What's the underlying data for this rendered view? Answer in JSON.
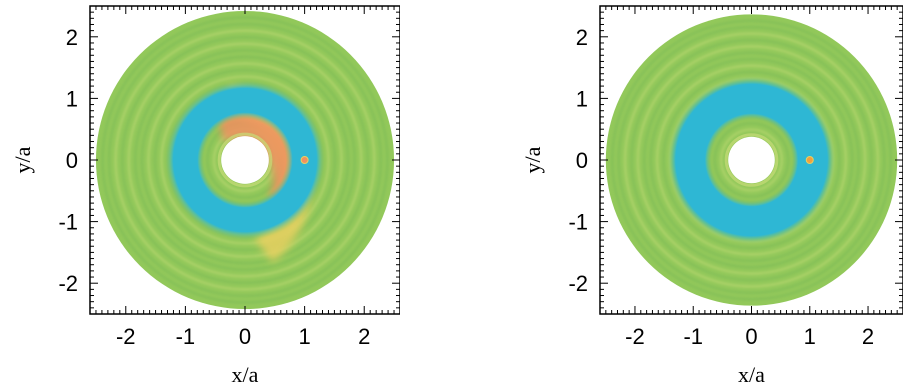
{
  "chart_data": [
    {
      "type": "heatmap",
      "panel": "left",
      "title": "",
      "xlabel": "x/a",
      "ylabel": "y/a",
      "xlim": [
        -2.6,
        2.6
      ],
      "ylim": [
        -2.5,
        2.5
      ],
      "xticks": [
        "-2",
        "-1",
        "0",
        "1",
        "2"
      ],
      "yticks": [
        "2",
        "1",
        "0",
        "-1",
        "-2"
      ],
      "xtick_values": [
        -2,
        -1,
        0,
        1,
        2
      ],
      "ytick_values": [
        2,
        1,
        0,
        -1,
        -2
      ],
      "disk": {
        "r_inner": 0.4,
        "r_outer": 2.5
      },
      "planet": {
        "x": 1.0,
        "y": 0.0
      },
      "colors": {
        "background_disk": "#92c85a",
        "gap": "#2eb7d4",
        "high": "#e8d060",
        "peak": "#f09060"
      },
      "features": [
        {
          "name": "gap",
          "r_inner": 0.8,
          "r_outer": 1.2,
          "color": "#2eb7d4"
        },
        {
          "name": "crescent",
          "r_inner": 0.95,
          "r_outer": 1.5,
          "angle_center_deg": 215,
          "color": "#e8d060"
        },
        {
          "name": "inner-spiral",
          "r_inner": 0.4,
          "r_outer": 0.95,
          "angle_center_deg": 240,
          "color": "#f09060"
        }
      ],
      "grid": false,
      "legend": "none"
    },
    {
      "type": "heatmap",
      "panel": "right",
      "title": "",
      "xlabel": "x/a",
      "ylabel": "y/a",
      "xlim": [
        -2.6,
        2.6
      ],
      "ylim": [
        -2.5,
        2.5
      ],
      "xticks": [
        "-2",
        "-1",
        "0",
        "1",
        "2"
      ],
      "yticks": [
        "2",
        "1",
        "0",
        "-1",
        "-2"
      ],
      "xtick_values": [
        -2,
        -1,
        0,
        1,
        2
      ],
      "ytick_values": [
        2,
        1,
        0,
        -1,
        -2
      ],
      "disk": {
        "r_inner": 0.4,
        "r_outer": 2.5
      },
      "planet": {
        "x": 1.0,
        "y": 0.0
      },
      "colors": {
        "background_disk": "#92c85a",
        "gap": "#2eb7d4",
        "high": "#e8d060",
        "peak": "#f0a040"
      },
      "features": [
        {
          "name": "gap",
          "r_inner": 0.8,
          "r_outer": 1.3,
          "color": "#2eb7d4"
        }
      ],
      "grid": false,
      "legend": "none"
    }
  ]
}
